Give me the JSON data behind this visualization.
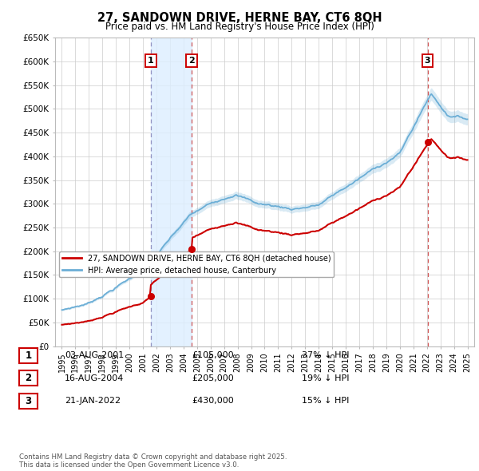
{
  "title": "27, SANDOWN DRIVE, HERNE BAY, CT6 8QH",
  "subtitle": "Price paid vs. HM Land Registry's House Price Index (HPI)",
  "background_color": "#ffffff",
  "plot_bg_color": "#ffffff",
  "grid_color": "#cccccc",
  "hpi_line_color": "#6baed6",
  "hpi_fill_color": "#ddeeff",
  "price_line_color": "#cc0000",
  "annotation_box_color": "#cc0000",
  "vline1_color": "#aaaacc",
  "vline2_color": "#cc4444",
  "purchases": [
    {
      "num": 1,
      "date_label": "03-AUG-2001",
      "year": 2001.58,
      "price": 105000,
      "pct": "37%",
      "dir": "↓"
    },
    {
      "num": 2,
      "date_label": "16-AUG-2004",
      "year": 2004.62,
      "price": 205000,
      "pct": "19%",
      "dir": "↓"
    },
    {
      "num": 3,
      "date_label": "21-JAN-2022",
      "year": 2022.05,
      "price": 430000,
      "pct": "15%",
      "dir": "↓"
    }
  ],
  "legend_entries": [
    {
      "label": "27, SANDOWN DRIVE, HERNE BAY, CT6 8QH (detached house)",
      "color": "#cc0000",
      "lw": 2
    },
    {
      "label": "HPI: Average price, detached house, Canterbury",
      "color": "#6baed6",
      "lw": 2
    }
  ],
  "footnote": "Contains HM Land Registry data © Crown copyright and database right 2025.\nThis data is licensed under the Open Government Licence v3.0.",
  "ylim": [
    0,
    650000
  ],
  "yticks": [
    0,
    50000,
    100000,
    150000,
    200000,
    250000,
    300000,
    350000,
    400000,
    450000,
    500000,
    550000,
    600000,
    650000
  ],
  "ytick_labels": [
    "£0",
    "£50K",
    "£100K",
    "£150K",
    "£200K",
    "£250K",
    "£300K",
    "£350K",
    "£400K",
    "£450K",
    "£500K",
    "£550K",
    "£600K",
    "£650K"
  ],
  "xlim": [
    1994.5,
    2025.5
  ],
  "xticks": [
    1995,
    1996,
    1997,
    1998,
    1999,
    2000,
    2001,
    2002,
    2003,
    2004,
    2005,
    2006,
    2007,
    2008,
    2009,
    2010,
    2011,
    2012,
    2013,
    2014,
    2015,
    2016,
    2017,
    2018,
    2019,
    2020,
    2021,
    2022,
    2023,
    2024,
    2025
  ]
}
